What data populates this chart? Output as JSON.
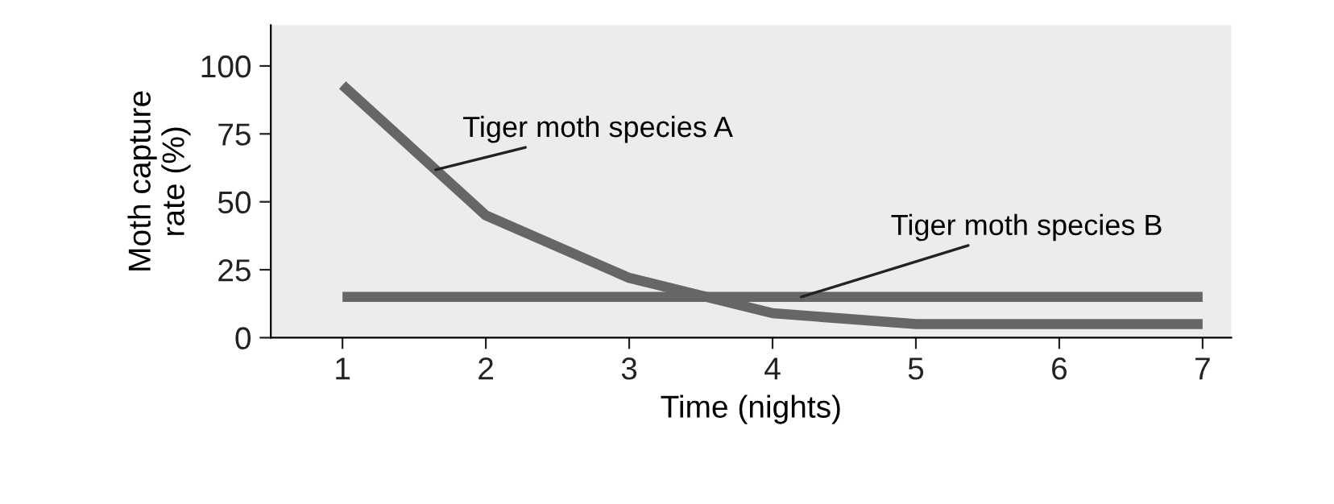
{
  "chart_data": {
    "type": "line",
    "xlabel": "Time (nights)",
    "ylabel": "Moth capture\nrate (%)",
    "x": [
      1,
      2,
      3,
      4,
      5,
      6,
      7
    ],
    "series": [
      {
        "name": "Tiger moth species A",
        "color": "#666666",
        "values": [
          93,
          45,
          22,
          9,
          5,
          5,
          5
        ]
      },
      {
        "name": "Tiger moth species B",
        "color": "#666666",
        "values": [
          15,
          15,
          15,
          15,
          15,
          15,
          15
        ]
      }
    ],
    "xlim": [
      0.5,
      7.2
    ],
    "ylim": [
      0,
      115
    ],
    "xticks": [
      1,
      2,
      3,
      4,
      5,
      6,
      7
    ],
    "yticks": [
      0,
      25,
      50,
      75,
      100
    ],
    "grid": false,
    "legend": false,
    "marker": "none",
    "line_style": "solid"
  }
}
